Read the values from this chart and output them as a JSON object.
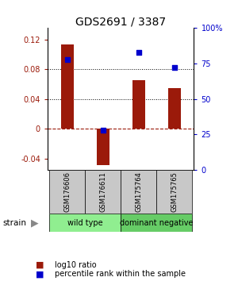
{
  "title": "GDS2691 / 3387",
  "samples": [
    "GSM176606",
    "GSM176611",
    "GSM175764",
    "GSM175765"
  ],
  "log10_ratio": [
    0.113,
    -0.048,
    0.065,
    0.055
  ],
  "percentile_rank": [
    78,
    28,
    83,
    72
  ],
  "groups": [
    {
      "label": "wild type",
      "samples": [
        0,
        1
      ],
      "color": "#90ee90"
    },
    {
      "label": "dominant negative",
      "samples": [
        2,
        3
      ],
      "color": "#66cc66"
    }
  ],
  "bar_color": "#9b1a0a",
  "dot_color": "#0000cc",
  "ylim_left": [
    -0.055,
    0.135
  ],
  "ylim_right": [
    0,
    100
  ],
  "yticks_left": [
    -0.04,
    0,
    0.04,
    0.08,
    0.12
  ],
  "yticks_right": [
    0,
    25,
    50,
    75,
    100
  ],
  "hlines": [
    0.04,
    0.08
  ],
  "background_color": "#ffffff",
  "label_log10": "log10 ratio",
  "label_percentile": "percentile rank within the sample",
  "strain_label": "strain",
  "gray_box_color": "#c8c8c8",
  "bar_width": 0.35,
  "title_fontsize": 10,
  "tick_fontsize": 7,
  "sample_fontsize": 6,
  "group_fontsize": 7,
  "legend_fontsize": 7
}
